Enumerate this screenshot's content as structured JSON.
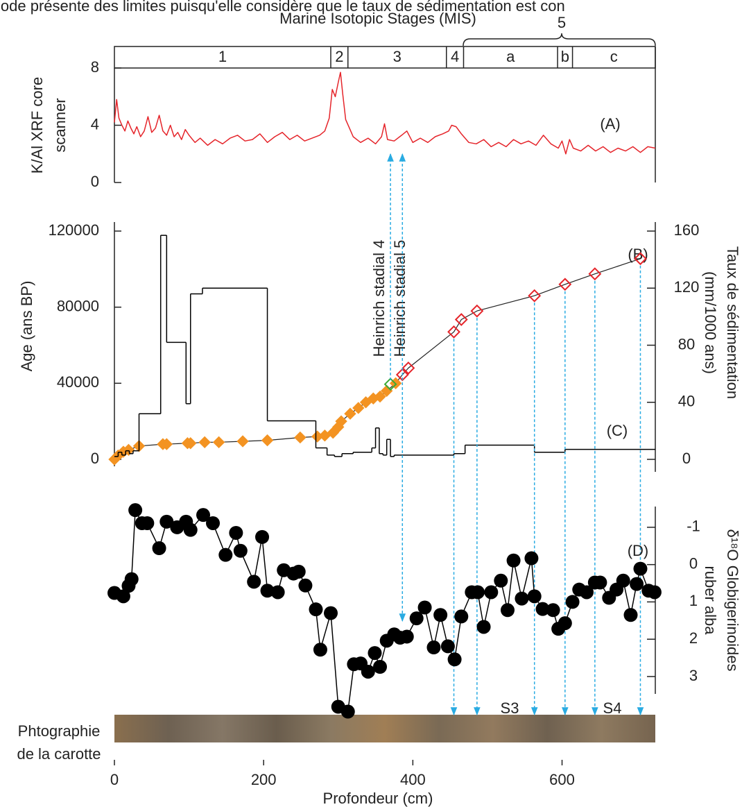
{
  "header": "iode présente des limites puisqu'elle considère que le taux de sédimentation est con",
  "mis": {
    "title": "Marine Isotopic Stages (MIS)",
    "group_label": "5",
    "stages": [
      {
        "label": "1",
        "start": 0,
        "end": 290
      },
      {
        "label": "2",
        "start": 290,
        "end": 313
      },
      {
        "label": "3",
        "start": 313,
        "end": 445
      },
      {
        "label": "4",
        "start": 445,
        "end": 468
      },
      {
        "label": "a",
        "start": 468,
        "end": 594
      },
      {
        "label": "b",
        "start": 594,
        "end": 614
      },
      {
        "label": "c",
        "start": 614,
        "end": 725
      }
    ]
  },
  "core_photo": {
    "label": [
      "Phtographie",
      "de la carotte"
    ]
  },
  "chart_data": [
    {
      "type": "line",
      "ylabel": [
        "K/Al XRF core",
        "scanner"
      ],
      "ylim": [
        0,
        8
      ],
      "yticks": [
        0,
        4,
        8
      ],
      "xlim": [
        0,
        725
      ],
      "color": "#e5242a",
      "annotations": [
        "(A)"
      ],
      "x": [
        0,
        3,
        6,
        10,
        14,
        18,
        22,
        26,
        30,
        35,
        40,
        45,
        50,
        55,
        60,
        65,
        70,
        75,
        80,
        85,
        90,
        95,
        100,
        108,
        115,
        125,
        135,
        145,
        155,
        165,
        175,
        185,
        195,
        205,
        215,
        225,
        235,
        245,
        255,
        265,
        275,
        282,
        288,
        292,
        296,
        300,
        303,
        306,
        310,
        315,
        320,
        330,
        340,
        350,
        358,
        362,
        366,
        375,
        385,
        392,
        400,
        410,
        420,
        430,
        440,
        448,
        452,
        458,
        465,
        475,
        485,
        495,
        505,
        515,
        525,
        535,
        545,
        555,
        565,
        575,
        585,
        595,
        600,
        605,
        610,
        615,
        625,
        635,
        645,
        655,
        665,
        675,
        685,
        695,
        705,
        715,
        725
      ],
      "values": [
        4.2,
        5.8,
        4.5,
        4.0,
        3.6,
        4.3,
        3.8,
        3.4,
        3.9,
        3.2,
        3.6,
        4.6,
        3.5,
        3.8,
        4.7,
        3.6,
        3.3,
        4.0,
        3.2,
        3.5,
        3.0,
        3.7,
        3.3,
        2.8,
        3.1,
        2.6,
        3.0,
        2.7,
        3.1,
        3.3,
        2.9,
        3.0,
        3.4,
        2.8,
        3.2,
        3.5,
        3.0,
        3.3,
        2.9,
        3.1,
        3.3,
        3.6,
        4.5,
        6.5,
        6.0,
        7.0,
        7.7,
        6.2,
        4.4,
        3.8,
        3.2,
        2.8,
        3.1,
        2.7,
        3.2,
        4.1,
        3.0,
        2.9,
        3.3,
        3.6,
        2.8,
        3.1,
        2.8,
        3.2,
        3.4,
        3.6,
        4.0,
        3.9,
        3.4,
        2.8,
        2.7,
        3.0,
        2.5,
        2.8,
        2.5,
        3.0,
        2.7,
        2.9,
        2.6,
        3.3,
        2.7,
        2.4,
        2.9,
        2.0,
        3.0,
        2.4,
        2.2,
        2.6,
        2.2,
        2.5,
        2.1,
        2.4,
        2.2,
        2.5,
        2.1,
        2.5,
        2.4
      ]
    },
    {
      "type": "scatter",
      "ylabel": "Age (ans BP)",
      "y2label": [
        "Taux de sédimentation",
        "(mm/1000 ans)"
      ],
      "ylim": [
        0,
        120000
      ],
      "yticks": [
        0,
        40000,
        80000,
        120000
      ],
      "y2lim": [
        0,
        160
      ],
      "y2ticks": [
        0,
        40,
        80,
        120,
        160
      ],
      "xlim": [
        0,
        725
      ],
      "annotations": [
        "(B)",
        "(C)",
        "Heinrich stadial 4",
        "Heinrich stadial 5"
      ],
      "series": [
        {
          "color": "#f39322",
          "marker": "diamond-filled",
          "x": [
            0,
            5,
            12,
            19,
            33,
            65,
            70,
            98,
            102,
            121,
            140,
            172,
            205,
            249,
            272,
            282,
            293,
            300,
            304,
            316,
            327,
            337,
            347,
            356,
            365,
            377
          ],
          "values": [
            0,
            2000,
            4000,
            5000,
            7000,
            8000,
            8000,
            8500,
            8500,
            9000,
            9000,
            9500,
            10000,
            11500,
            12000,
            12500,
            14000,
            17000,
            20000,
            24000,
            27000,
            30000,
            32000,
            33000,
            36000,
            40000
          ]
        },
        {
          "color": "#3aaa35",
          "marker": "diamond-open",
          "x": [
            370
          ],
          "values": [
            39500
          ]
        },
        {
          "color": "#e5242a",
          "marker": "diamond-open",
          "x": [
            386,
            394,
            455,
            465,
            486,
            563,
            604,
            644,
            705
          ],
          "values": [
            44500,
            48000,
            67000,
            73500,
            78000,
            86000,
            92000,
            97500,
            105500
          ]
        },
        {
          "axis": "y2",
          "color": "#000000",
          "marker": "step",
          "bins": [
            0,
            5,
            10,
            15,
            20,
            25,
            33,
            62,
            70,
            96,
            102,
            118,
            205,
            270,
            285,
            295,
            305,
            320,
            345,
            350,
            355,
            360,
            365,
            370,
            375,
            455,
            470,
            563,
            604,
            725
          ],
          "values": [
            2,
            5,
            3,
            6,
            4,
            6,
            32,
            157,
            82,
            39,
            116,
            120,
            27,
            8,
            3,
            2,
            4,
            5,
            8,
            22,
            4,
            3,
            14,
            2,
            3,
            4,
            10,
            5,
            7
          ]
        }
      ]
    },
    {
      "type": "scatter",
      "connected": true,
      "ylabel": [
        "δ¹⁸O Globigerinoides",
        "ruber alba"
      ],
      "ylim": [
        4,
        -1.5
      ],
      "yticks": [
        -1,
        0,
        1,
        2,
        3
      ],
      "xlim": [
        0,
        725
      ],
      "xticks": [
        0,
        200,
        400,
        600
      ],
      "xlabel": "Profondeur (cm)",
      "color": "#000000",
      "annotations": [
        "(D)",
        "S3",
        "S4"
      ],
      "x": [
        0,
        12,
        19,
        23,
        28,
        37,
        44,
        60,
        70,
        84,
        96,
        102,
        119,
        132,
        149,
        163,
        169,
        187,
        198,
        205,
        219,
        227,
        240,
        247,
        256,
        270,
        276,
        290,
        300,
        313,
        321,
        330,
        340,
        349,
        356,
        365,
        375,
        383,
        392,
        405,
        416,
        428,
        437,
        447,
        456,
        465,
        479,
        487,
        495,
        505,
        518,
        527,
        535,
        546,
        559,
        563,
        574,
        588,
        595,
        604,
        614,
        623,
        633,
        644,
        651,
        663,
        673,
        682,
        692,
        700,
        705,
        716,
        724
      ],
      "values": [
        0.76,
        0.85,
        0.57,
        0.39,
        -1.46,
        -1.11,
        -1.11,
        -0.44,
        -1.15,
        -1.0,
        -1.15,
        -0.93,
        -1.33,
        -1.11,
        -0.26,
        -0.85,
        -0.37,
        0.46,
        -0.74,
        0.7,
        0.74,
        0.15,
        0.24,
        0.19,
        0.56,
        1.2,
        2.28,
        1.3,
        3.81,
        3.94,
        2.67,
        2.65,
        2.87,
        2.37,
        2.74,
        2.04,
        1.87,
        1.96,
        1.93,
        1.44,
        1.15,
        2.22,
        1.35,
        2.19,
        2.54,
        1.39,
        0.74,
        0.74,
        1.67,
        0.74,
        0.43,
        1.22,
        -0.11,
        0.91,
        -0.17,
        0.85,
        1.19,
        1.22,
        1.72,
        1.57,
        1.0,
        0.67,
        0.74,
        0.48,
        0.48,
        0.89,
        0.67,
        0.43,
        1.35,
        0.52,
        0.11,
        0.7,
        0.74
      ]
    }
  ]
}
